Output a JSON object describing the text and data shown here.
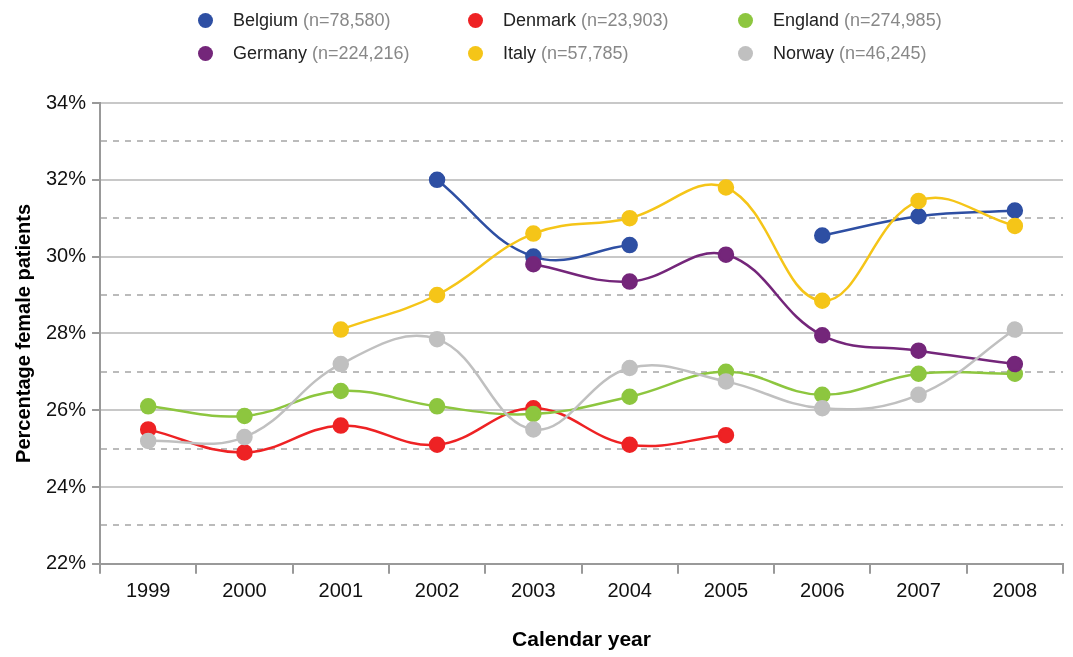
{
  "chart_data": {
    "type": "line",
    "xlabel": "Calendar year",
    "ylabel": "Percentage female patients",
    "categories": [
      "1999",
      "2000",
      "2001",
      "2002",
      "2003",
      "2004",
      "2005",
      "2006",
      "2007",
      "2008"
    ],
    "series": [
      {
        "name": "Belgium (n=78,580)",
        "color": "#2e4fa3",
        "values": [
          null,
          null,
          null,
          32.0,
          30.0,
          30.3,
          null,
          30.55,
          31.05,
          31.2
        ]
      },
      {
        "name": "Denmark (n=23,903)",
        "color": "#ee2224",
        "values": [
          25.5,
          24.9,
          25.6,
          25.1,
          26.05,
          25.1,
          25.35,
          null,
          null,
          null
        ]
      },
      {
        "name": "England (n=274,985)",
        "color": "#8dc63f",
        "values": [
          26.1,
          25.85,
          26.5,
          26.1,
          25.9,
          26.35,
          27.0,
          26.4,
          26.95,
          26.95
        ]
      },
      {
        "name": "Germany (n=224,216)",
        "color": "#74267a",
        "values": [
          null,
          null,
          null,
          null,
          29.8,
          29.35,
          30.05,
          27.95,
          27.55,
          27.2
        ]
      },
      {
        "name": "Italy (n=57,785)",
        "color": "#f5c518",
        "values": [
          null,
          null,
          28.1,
          29.0,
          30.6,
          31.0,
          31.8,
          28.85,
          31.45,
          30.8
        ]
      },
      {
        "name": "Norway (n=46,245)",
        "color": "#c0c0c0",
        "values": [
          25.2,
          25.3,
          27.2,
          27.85,
          25.5,
          27.1,
          26.75,
          26.05,
          26.4,
          28.1
        ]
      }
    ],
    "ylim": [
      22,
      34
    ],
    "yticks": [
      {
        "value": 22,
        "label": "22%"
      },
      {
        "value": 23,
        "label": null
      },
      {
        "value": 24,
        "label": "24%"
      },
      {
        "value": 25,
        "label": null
      },
      {
        "value": 26,
        "label": "26%"
      },
      {
        "value": 27,
        "label": null
      },
      {
        "value": 28,
        "label": "28%"
      },
      {
        "value": 29,
        "label": null
      },
      {
        "value": 30,
        "label": "30%"
      },
      {
        "value": 31,
        "label": null
      },
      {
        "value": 32,
        "label": "32%"
      },
      {
        "value": 33,
        "label": null
      },
      {
        "value": 34,
        "label": "34%"
      }
    ],
    "grid": "y",
    "legend": "top",
    "marker": "circle",
    "line_style": "solid"
  }
}
